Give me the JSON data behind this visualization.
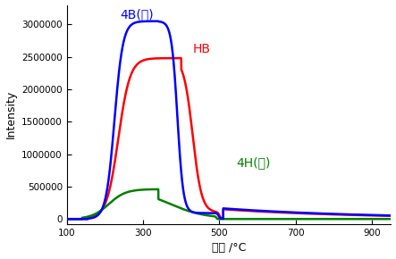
{
  "title": "",
  "xlabel": "温度 /°C",
  "ylabel": "Intensity",
  "xlim": [
    100,
    950
  ],
  "ylim": [
    -80000,
    3300000
  ],
  "yticks": [
    0,
    500000,
    1000000,
    1500000,
    2000000,
    2500000,
    3000000
  ],
  "xticks": [
    100,
    300,
    500,
    700,
    900
  ],
  "colors": {
    "4B": "#0000ff",
    "HB": "#ff0000",
    "4H": "#008000"
  },
  "labels": {
    "4B": "4B(濃)",
    "HB": "HB",
    "4H": "4H(薄)"
  },
  "label_positions": {
    "4B": [
      283,
      3060000
    ],
    "HB": [
      430,
      2620000
    ],
    "4H": [
      545,
      870000
    ]
  },
  "background_color": "#ffffff"
}
